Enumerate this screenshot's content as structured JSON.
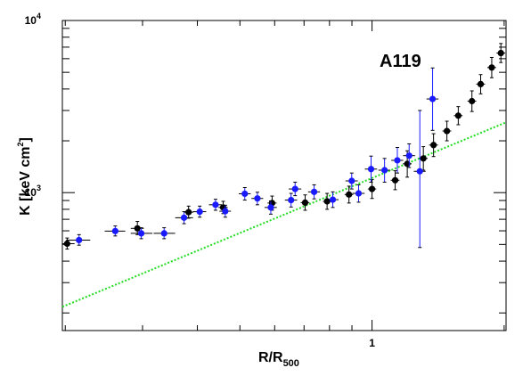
{
  "chart_data": {
    "type": "scatter",
    "title": "",
    "annotation": "A119",
    "xlabel": {
      "main": "R/R",
      "sub": "500"
    },
    "ylabel": {
      "main": "K [keV cm",
      "sup": "2",
      "close": "]"
    },
    "xscale": "log",
    "yscale": "log",
    "xlim": [
      0.197,
      2.02
    ],
    "ylim": [
      158,
      10000
    ],
    "x_tick_labels": [
      {
        "value": 1,
        "label": "1"
      }
    ],
    "y_tick_labels": [
      {
        "value": 1000,
        "base": "10",
        "exp": "3"
      },
      {
        "value": 10000,
        "base": "10",
        "exp": "4"
      }
    ],
    "grid": false,
    "legend": "none",
    "colors": {
      "black_series": "#000000",
      "blue_series": "#1a1aff",
      "model_line": "#22dd22",
      "error_bars": "#000000"
    },
    "series": [
      {
        "marker": "black-circle",
        "points": [
          {
            "x": 0.202,
            "y": 505,
            "xerr": [
              0.197,
              0.21
            ],
            "yerr": [
              470,
              545
            ]
          },
          {
            "x": 0.292,
            "y": 620,
            "xerr": [
              0.282,
              0.302
            ],
            "yerr": [
              570,
              680
            ]
          },
          {
            "x": 0.382,
            "y": 770,
            "xerr": [
              0.372,
              0.392
            ],
            "yerr": [
              710,
              835
            ]
          },
          {
            "x": 0.458,
            "y": 820,
            "xerr": [
              0.447,
              0.469
            ],
            "yerr": [
              755,
              890
            ]
          },
          {
            "x": 0.592,
            "y": 870,
            "xerr": [
              0.578,
              0.606
            ],
            "yerr": [
              790,
              955
            ]
          },
          {
            "x": 0.704,
            "y": 875,
            "xerr": [
              0.688,
              0.72
            ],
            "yerr": [
              790,
              970
            ]
          },
          {
            "x": 0.79,
            "y": 890,
            "xerr": [
              0.773,
              0.807
            ],
            "yerr": [
              800,
              990
            ]
          },
          {
            "x": 0.886,
            "y": 975,
            "xerr": [
              0.866,
              0.906
            ],
            "yerr": [
              870,
              1090
            ]
          },
          {
            "x": 1.0,
            "y": 1050,
            "xerr": [
              0.978,
              1.022
            ],
            "yerr": [
              925,
              1190
            ]
          },
          {
            "x": 1.129,
            "y": 1180,
            "xerr": [
              1.103,
              1.155
            ],
            "yerr": [
              1040,
              1340
            ]
          },
          {
            "x": 1.203,
            "y": 1470,
            "xerr": [
              1.175,
              1.231
            ],
            "yerr": [
              1230,
              1750
            ]
          },
          {
            "x": 1.309,
            "y": 1580,
            "xerr": [
              1.279,
              1.339
            ],
            "yerr": [
              1350,
              1850
            ]
          },
          {
            "x": 1.381,
            "y": 1890,
            "xerr": [
              1.349,
              1.413
            ],
            "yerr": [
              1620,
              2200
            ]
          },
          {
            "x": 1.481,
            "y": 2280,
            "xerr": [
              1.447,
              1.515
            ],
            "yerr": [
              2000,
              2600
            ]
          },
          {
            "x": 1.572,
            "y": 2800,
            "xerr": [
              1.536,
              1.608
            ],
            "yerr": [
              2480,
              3160
            ]
          },
          {
            "x": 1.689,
            "y": 3400,
            "xerr": [
              1.65,
              1.728
            ],
            "yerr": [
              2960,
              3900
            ]
          },
          {
            "x": 1.768,
            "y": 4270,
            "xerr": [
              1.727,
              1.809
            ],
            "yerr": [
              3750,
              4850
            ]
          },
          {
            "x": 1.874,
            "y": 5330,
            "xerr": [
              1.831,
              1.917
            ],
            "yerr": [
              4650,
              6100
            ]
          },
          {
            "x": 1.966,
            "y": 6470,
            "xerr": [
              1.921,
              2.011
            ],
            "yerr": [
              5700,
              7350
            ]
          }
        ]
      },
      {
        "marker": "blue-circle",
        "points": [
          {
            "x": 0.215,
            "y": 530,
            "xerr": [
              0.201,
              0.228
            ],
            "yerr": [
              495,
              570
            ]
          },
          {
            "x": 0.26,
            "y": 598,
            "xerr": [
              0.246,
              0.274
            ],
            "yerr": [
              560,
              640
            ]
          },
          {
            "x": 0.298,
            "y": 580,
            "xerr": [
              0.282,
              0.316
            ],
            "yerr": [
              540,
              625
            ]
          },
          {
            "x": 0.336,
            "y": 580,
            "xerr": [
              0.318,
              0.356
            ],
            "yerr": [
              540,
              625
            ]
          },
          {
            "x": 0.373,
            "y": 715,
            "xerr": [
              0.356,
              0.391
            ],
            "yerr": [
              660,
              775
            ]
          },
          {
            "x": 0.405,
            "y": 775,
            "xerr": [
              0.391,
              0.419
            ],
            "yerr": [
              720,
              835
            ]
          },
          {
            "x": 0.44,
            "y": 850,
            "xerr": [
              0.425,
              0.455
            ],
            "yerr": [
              790,
              915
            ]
          },
          {
            "x": 0.463,
            "y": 780,
            "xerr": [
              0.449,
              0.477
            ],
            "yerr": [
              720,
              845
            ]
          },
          {
            "x": 0.513,
            "y": 985,
            "xerr": [
              0.497,
              0.529
            ],
            "yerr": [
              905,
              1070
            ]
          },
          {
            "x": 0.548,
            "y": 925,
            "xerr": [
              0.531,
              0.565
            ],
            "yerr": [
              850,
              1005
            ]
          },
          {
            "x": 0.588,
            "y": 820,
            "xerr": [
              0.569,
              0.607
            ],
            "yerr": [
              750,
              895
            ]
          },
          {
            "x": 0.654,
            "y": 905,
            "xerr": [
              0.633,
              0.675
            ],
            "yerr": [
              825,
              990
            ]
          },
          {
            "x": 0.668,
            "y": 1050,
            "xerr": [
              0.646,
              0.69
            ],
            "yerr": [
              960,
              1150
            ]
          },
          {
            "x": 0.738,
            "y": 1010,
            "xerr": [
              0.715,
              0.761
            ],
            "yerr": [
              920,
              1110
            ]
          },
          {
            "x": 0.814,
            "y": 910,
            "xerr": [
              0.789,
              0.839
            ],
            "yerr": [
              820,
              1010
            ]
          },
          {
            "x": 0.899,
            "y": 1170,
            "xerr": [
              0.87,
              0.928
            ],
            "yerr": [
              1050,
              1300
            ]
          },
          {
            "x": 0.932,
            "y": 990,
            "xerr": [
              0.902,
              0.962
            ],
            "yerr": [
              880,
              1110
            ]
          },
          {
            "x": 0.995,
            "y": 1370,
            "xerr": [
              0.963,
              1.027
            ],
            "yerr": [
              1150,
              1630
            ]
          },
          {
            "x": 1.068,
            "y": 1350,
            "xerr": [
              1.034,
              1.102
            ],
            "yerr": [
              1150,
              1580
            ]
          },
          {
            "x": 1.142,
            "y": 1540,
            "xerr": [
              1.106,
              1.178
            ],
            "yerr": [
              1300,
              1830
            ]
          },
          {
            "x": 1.215,
            "y": 1640,
            "xerr": [
              1.177,
              1.253
            ],
            "yerr": [
              1400,
              1920
            ]
          },
          {
            "x": 1.285,
            "y": 1330,
            "xerr": [
              1.245,
              1.325
            ],
            "yerr": [
              480,
              3000
            ]
          },
          {
            "x": 1.374,
            "y": 3500,
            "xerr": [
              1.331,
              1.417
            ],
            "yerr": [
              2300,
              5300
            ]
          }
        ]
      }
    ],
    "model_line": {
      "style": "dotted",
      "x": [
        0.197,
        2.02
      ],
      "y": [
        217,
        2560
      ]
    }
  }
}
